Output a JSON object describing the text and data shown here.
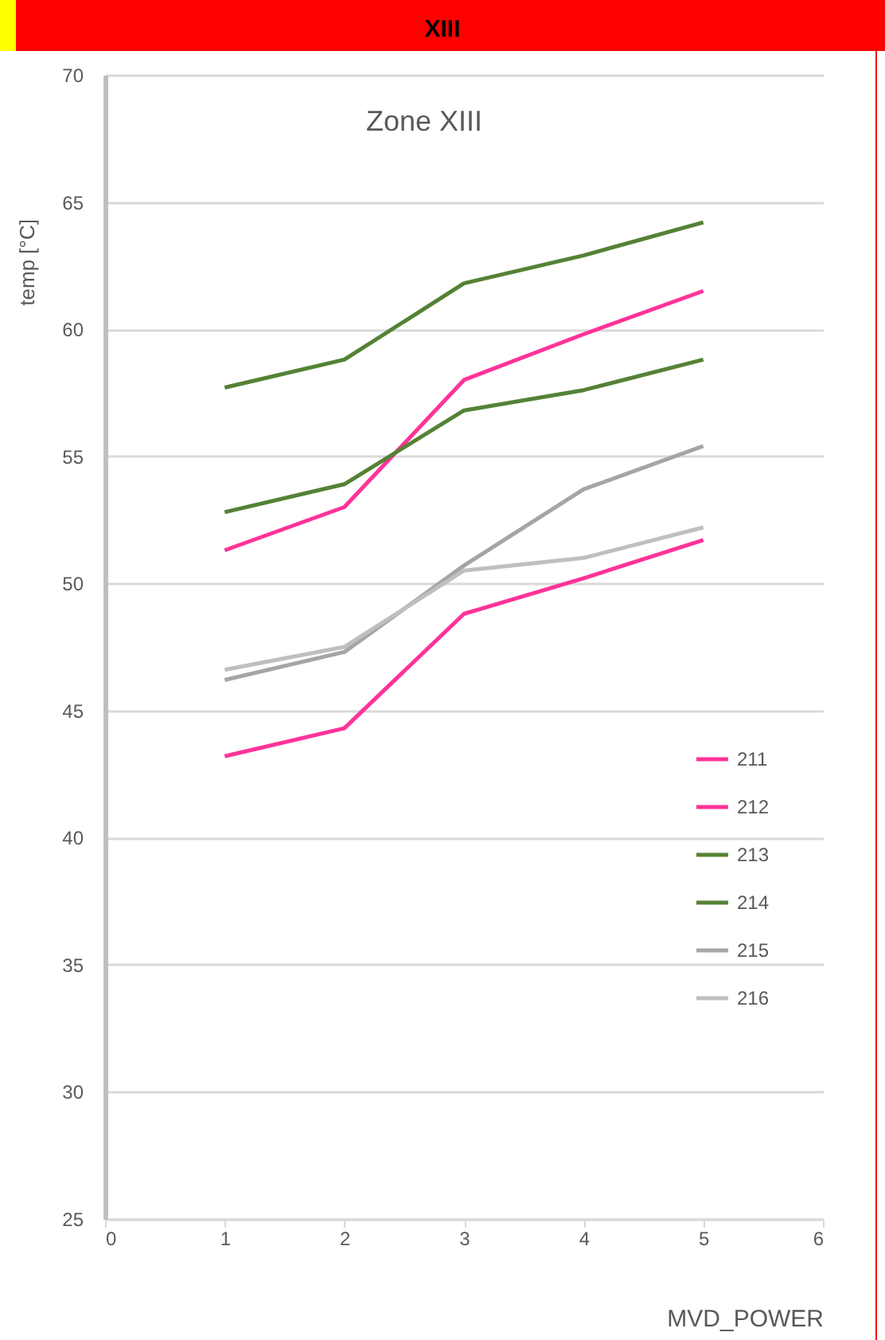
{
  "chart_data": {
    "type": "line",
    "title": "XIII",
    "subtitle": "Zone XIII",
    "xlabel": "MVD_POWER",
    "ylabel": "temp [°C]",
    "x": [
      1,
      2,
      3,
      4,
      5
    ],
    "series": [
      {
        "name": "211",
        "color": "#ff3399",
        "values": [
          51.3,
          53.0,
          58.0,
          59.8,
          61.5
        ]
      },
      {
        "name": "212",
        "color": "#ff3399",
        "values": [
          43.2,
          44.3,
          48.8,
          50.2,
          51.7
        ]
      },
      {
        "name": "213",
        "color": "#548235",
        "values": [
          57.7,
          58.8,
          61.8,
          62.9,
          64.2
        ]
      },
      {
        "name": "214",
        "color": "#548235",
        "values": [
          52.8,
          53.9,
          56.8,
          57.6,
          58.8
        ]
      },
      {
        "name": "215",
        "color": "#a5a5a5",
        "values": [
          46.2,
          47.3,
          50.7,
          53.7,
          55.4
        ]
      },
      {
        "name": "216",
        "color": "#bfbfbf",
        "values": [
          46.6,
          47.5,
          50.5,
          51.0,
          52.2
        ]
      }
    ],
    "xlim": [
      0,
      6
    ],
    "xticks": [
      0,
      1,
      2,
      3,
      4,
      5,
      6
    ],
    "ylim": [
      25,
      70
    ],
    "yticks": [
      25,
      30,
      35,
      40,
      45,
      50,
      55,
      60,
      65,
      70
    ],
    "grid": "y",
    "legend": "right",
    "marker": "none",
    "line_style": "solid"
  }
}
